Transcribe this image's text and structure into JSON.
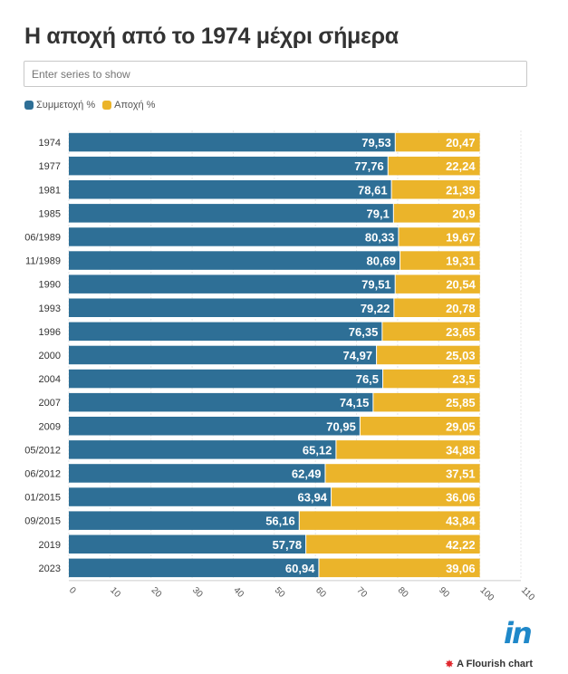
{
  "title": "Η αποχή από το 1974 μέχρι σήμερα",
  "search": {
    "placeholder": "Enter series to show"
  },
  "legend": [
    {
      "label": "Συμμετοχή %",
      "color": "#2e6f96"
    },
    {
      "label": "Αποχή %",
      "color": "#ebb42a"
    }
  ],
  "footer": {
    "logo": "in",
    "credit": "A Flourish chart",
    "credit_icon": "flourish-star-icon"
  },
  "chart_data": {
    "type": "bar",
    "orientation": "horizontal",
    "stacked": true,
    "categories": [
      "1974",
      "1977",
      "1981",
      "1985",
      "06/1989",
      "11/1989",
      "1990",
      "1993",
      "1996",
      "2000",
      "2004",
      "2007",
      "2009",
      "05/2012",
      "06/2012",
      "01/2015",
      "09/2015",
      "2019",
      "2023"
    ],
    "series": [
      {
        "name": "Συμμετοχή %",
        "color": "#2e6f96",
        "values": [
          79.53,
          77.76,
          78.61,
          79.1,
          80.33,
          80.69,
          79.51,
          79.22,
          76.35,
          74.97,
          76.5,
          74.15,
          70.95,
          65.12,
          62.49,
          63.94,
          56.16,
          57.78,
          60.94
        ],
        "labels": [
          "79,53",
          "77,76",
          "78,61",
          "79,1",
          "80,33",
          "80,69",
          "79,51",
          "79,22",
          "76,35",
          "74,97",
          "76,5",
          "74,15",
          "70,95",
          "65,12",
          "62,49",
          "63,94",
          "56,16",
          "57,78",
          "60,94"
        ]
      },
      {
        "name": "Αποχή %",
        "color": "#ebb42a",
        "values": [
          20.47,
          22.24,
          21.39,
          20.9,
          19.67,
          19.31,
          20.54,
          20.78,
          23.65,
          25.03,
          23.5,
          25.85,
          29.05,
          34.88,
          37.51,
          36.06,
          43.84,
          42.22,
          39.06
        ],
        "labels": [
          "20,47",
          "22,24",
          "21,39",
          "20,9",
          "19,67",
          "19,31",
          "20,54",
          "20,78",
          "23,65",
          "25,03",
          "23,5",
          "25,85",
          "29,05",
          "34,88",
          "37,51",
          "36,06",
          "43,84",
          "42,22",
          "39,06"
        ]
      }
    ],
    "xlim": [
      0,
      110
    ],
    "xticks": [
      0,
      10,
      20,
      30,
      40,
      50,
      60,
      70,
      80,
      90,
      100,
      110
    ],
    "grid": true
  }
}
